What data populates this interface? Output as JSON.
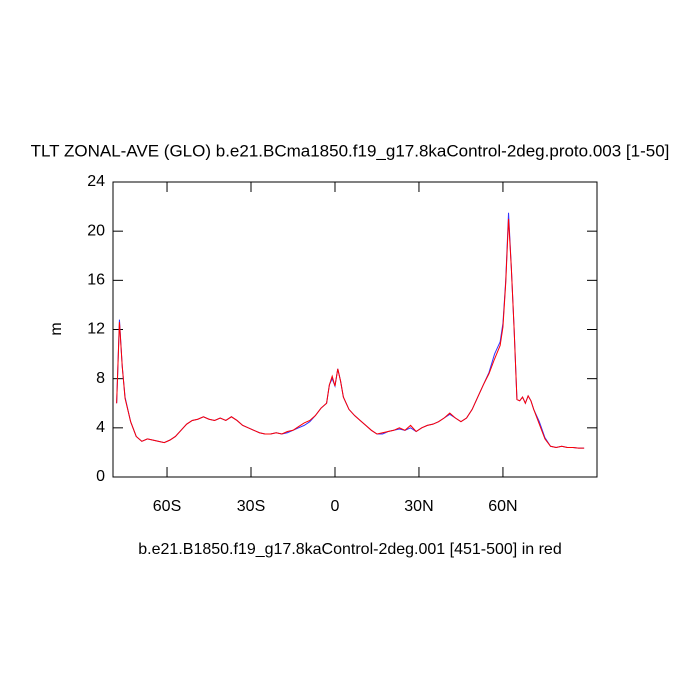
{
  "chart_data": {
    "type": "line",
    "title": "TLT ZONAL-AVE (GLO) b.e21.BCma1850.f19_g17.8kaControl-2deg.proto.003 [1-50]",
    "x_label": "b.e21.B1850.f19_g17.8kaControl-2deg.001 [451-500] in red",
    "y_label": "m",
    "x": [
      -78,
      -77,
      -76,
      -75,
      -73,
      -71,
      -69,
      -67,
      -65,
      -63,
      -61,
      -59,
      -57,
      -55,
      -53,
      -51,
      -49,
      -47,
      -45,
      -43,
      -41,
      -39,
      -37,
      -35,
      -33,
      -31,
      -29,
      -27,
      -25,
      -23,
      -21,
      -19,
      -17,
      -15,
      -13,
      -11,
      -9,
      -7,
      -5,
      -3,
      -2,
      -1,
      0,
      1,
      2,
      3,
      5,
      7,
      9,
      11,
      13,
      15,
      17,
      19,
      21,
      23,
      25,
      27,
      29,
      31,
      33,
      35,
      37,
      39,
      41,
      43,
      45,
      47,
      49,
      51,
      53,
      55,
      57,
      59,
      60,
      61,
      62,
      63,
      64,
      65,
      66,
      67,
      68,
      69,
      70,
      71,
      73,
      75,
      77,
      79,
      81,
      83,
      85,
      87,
      89
    ],
    "series": [
      {
        "name": "blue",
        "color": "#3333ff",
        "values": [
          6,
          12.8,
          9,
          6.5,
          4.5,
          3.3,
          2.9,
          3.1,
          3.0,
          2.9,
          2.8,
          3.0,
          3.3,
          3.8,
          4.3,
          4.6,
          4.7,
          4.9,
          4.7,
          4.6,
          4.8,
          4.6,
          4.9,
          4.6,
          4.2,
          4.0,
          3.8,
          3.6,
          3.5,
          3.5,
          3.6,
          3.5,
          3.6,
          3.8,
          4.0,
          4.2,
          4.5,
          5.0,
          5.6,
          6.0,
          7.5,
          8.0,
          7.4,
          8.8,
          7.8,
          6.5,
          5.5,
          5.0,
          4.6,
          4.2,
          3.8,
          3.5,
          3.5,
          3.7,
          3.8,
          3.9,
          3.8,
          4.0,
          3.7,
          4.0,
          4.2,
          4.3,
          4.5,
          4.8,
          5.1,
          4.8,
          4.5,
          4.8,
          5.5,
          6.5,
          7.5,
          8.5,
          10.0,
          11.0,
          12.5,
          16,
          21.5,
          17,
          12,
          6.3,
          6.2,
          6.5,
          6.0,
          6.6,
          6.2,
          5.5,
          4.5,
          3.2,
          2.5,
          2.4,
          2.5,
          2.4,
          2.4,
          2.35,
          2.35
        ]
      },
      {
        "name": "red",
        "color": "#ff0000",
        "values": [
          6,
          12.6,
          9,
          6.4,
          4.5,
          3.3,
          2.9,
          3.1,
          3.0,
          2.9,
          2.8,
          3.0,
          3.3,
          3.8,
          4.3,
          4.6,
          4.7,
          4.9,
          4.7,
          4.6,
          4.8,
          4.6,
          4.9,
          4.6,
          4.2,
          4.0,
          3.8,
          3.6,
          3.5,
          3.5,
          3.6,
          3.5,
          3.7,
          3.8,
          4.1,
          4.4,
          4.6,
          5.0,
          5.6,
          6.0,
          7.5,
          8.2,
          7.4,
          8.8,
          7.8,
          6.5,
          5.5,
          5.0,
          4.6,
          4.2,
          3.8,
          3.5,
          3.6,
          3.7,
          3.8,
          4.0,
          3.8,
          4.2,
          3.7,
          4.0,
          4.2,
          4.3,
          4.5,
          4.8,
          5.2,
          4.8,
          4.5,
          4.8,
          5.5,
          6.5,
          7.5,
          8.4,
          9.6,
          10.7,
          12.2,
          15.8,
          21.0,
          17,
          12,
          6.3,
          6.2,
          6.5,
          6.0,
          6.6,
          6.2,
          5.5,
          4.3,
          3.1,
          2.5,
          2.4,
          2.5,
          2.4,
          2.4,
          2.35,
          2.35
        ]
      }
    ],
    "xlim": [
      -79.3,
      93.6
    ],
    "ylim": [
      0,
      24
    ],
    "xticks": [
      {
        "value": -60,
        "label": "60S"
      },
      {
        "value": -30,
        "label": "30S"
      },
      0,
      {
        "value": 30,
        "label": "30N"
      },
      {
        "value": 60,
        "label": "60N"
      }
    ],
    "yticks": [
      0,
      4,
      8,
      12,
      16,
      20,
      24
    ]
  }
}
